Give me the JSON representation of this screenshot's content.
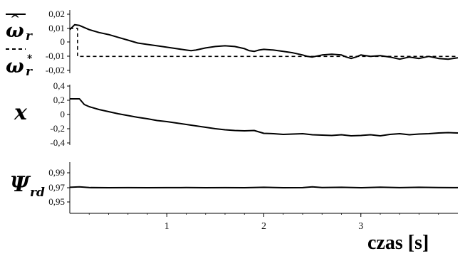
{
  "chart_data": [
    {
      "type": "line",
      "ylabel": "ω̂r",
      "ylabel_ref": "ωr*",
      "yticks": [
        "0,02",
        "0,01",
        "0",
        "-0,01",
        "-0,02"
      ],
      "ylim": [
        -0.02,
        0.02
      ],
      "series": [
        {
          "style": "solid",
          "x": [
            0,
            0.05,
            0.1,
            0.2,
            0.3,
            0.4,
            0.5,
            0.6,
            0.7,
            0.8,
            0.9,
            1.0,
            1.1,
            1.2,
            1.25,
            1.3,
            1.4,
            1.5,
            1.6,
            1.7,
            1.8,
            1.85,
            1.9,
            1.95,
            2.0,
            2.1,
            2.2,
            2.3,
            2.4,
            2.45,
            2.5,
            2.6,
            2.7,
            2.8,
            2.85,
            2.9,
            2.95,
            3.0,
            3.1,
            3.2,
            3.3,
            3.4,
            3.5,
            3.6,
            3.7,
            3.8,
            3.9,
            4.0
          ],
          "y": [
            0.009,
            0.0125,
            0.012,
            0.009,
            0.007,
            0.0055,
            0.0035,
            0.0015,
            -0.0005,
            -0.0015,
            -0.0025,
            -0.0035,
            -0.0045,
            -0.0055,
            -0.006,
            -0.0055,
            -0.004,
            -0.003,
            -0.0025,
            -0.003,
            -0.0045,
            -0.006,
            -0.0065,
            -0.0055,
            -0.005,
            -0.0055,
            -0.0065,
            -0.0075,
            -0.009,
            -0.01,
            -0.0105,
            -0.009,
            -0.0085,
            -0.009,
            -0.0105,
            -0.0115,
            -0.0105,
            -0.009,
            -0.01,
            -0.0095,
            -0.0105,
            -0.012,
            -0.0105,
            -0.0115,
            -0.01,
            -0.0115,
            -0.012,
            -0.011
          ]
        },
        {
          "style": "dashed",
          "x": [
            0,
            0.08,
            0.08,
            4.0
          ],
          "y": [
            0.01,
            0.01,
            -0.01,
            -0.01
          ]
        }
      ]
    },
    {
      "type": "line",
      "ylabel": "x",
      "yticks": [
        "0,4",
        "0,2",
        "0",
        "-0,2",
        "-0,4"
      ],
      "ylim": [
        -0.4,
        0.4
      ],
      "series": [
        {
          "style": "solid",
          "x": [
            0,
            0.1,
            0.15,
            0.2,
            0.3,
            0.4,
            0.5,
            0.6,
            0.7,
            0.8,
            0.9,
            1.0,
            1.1,
            1.2,
            1.3,
            1.4,
            1.5,
            1.6,
            1.7,
            1.8,
            1.9,
            1.95,
            2.0,
            2.1,
            2.2,
            2.3,
            2.4,
            2.5,
            2.6,
            2.7,
            2.8,
            2.9,
            3.0,
            3.1,
            3.2,
            3.3,
            3.4,
            3.5,
            3.6,
            3.7,
            3.8,
            3.9,
            4.0
          ],
          "y": [
            0.22,
            0.22,
            0.14,
            0.11,
            0.07,
            0.04,
            0.01,
            -0.015,
            -0.04,
            -0.06,
            -0.085,
            -0.1,
            -0.12,
            -0.14,
            -0.16,
            -0.18,
            -0.2,
            -0.215,
            -0.225,
            -0.23,
            -0.225,
            -0.245,
            -0.265,
            -0.27,
            -0.28,
            -0.275,
            -0.27,
            -0.285,
            -0.29,
            -0.295,
            -0.285,
            -0.3,
            -0.295,
            -0.285,
            -0.3,
            -0.28,
            -0.27,
            -0.285,
            -0.275,
            -0.27,
            -0.26,
            -0.255,
            -0.26
          ]
        }
      ]
    },
    {
      "type": "line",
      "ylabel": "Ψrd",
      "yticks": [
        "0,99",
        "0,97",
        "0,95"
      ],
      "ylim": [
        0.94,
        1.0
      ],
      "series": [
        {
          "style": "solid",
          "x": [
            0,
            0.1,
            0.2,
            0.4,
            0.6,
            0.8,
            1.0,
            1.2,
            1.4,
            1.6,
            1.8,
            2.0,
            2.2,
            2.4,
            2.5,
            2.6,
            2.8,
            3.0,
            3.2,
            3.4,
            3.6,
            3.8,
            4.0
          ],
          "y": [
            0.9705,
            0.971,
            0.9702,
            0.97,
            0.9701,
            0.97,
            0.9701,
            0.9702,
            0.97,
            0.9701,
            0.97,
            0.9705,
            0.97,
            0.9701,
            0.971,
            0.9702,
            0.9705,
            0.97,
            0.9706,
            0.9701,
            0.9705,
            0.9702,
            0.9701
          ]
        }
      ]
    }
  ],
  "xaxis": {
    "xlim": [
      0,
      4
    ],
    "ticks": [
      "1",
      "2",
      "3"
    ],
    "label": "czas [s]"
  }
}
